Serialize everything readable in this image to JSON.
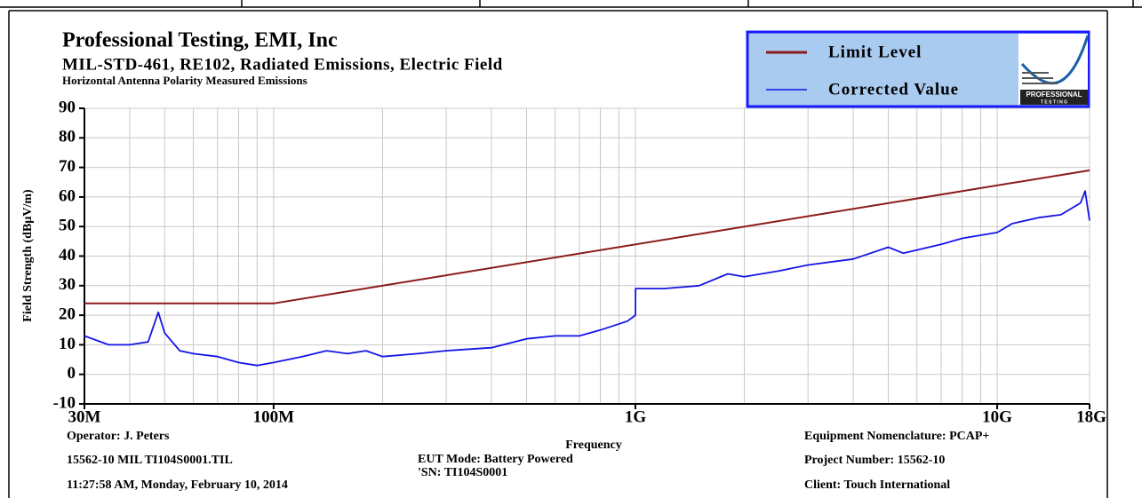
{
  "chart_data": {
    "type": "line",
    "title": "Professional Testing, EMI, Inc",
    "subtitle": "MIL-STD-461, RE102, Radiated Emissions, Electric Field",
    "caption": "Horizontal Antenna Polarity Measured Emissions",
    "y_label": "Field Strength (dBµV/m)",
    "x_label": "Frequency",
    "x_scale": "log",
    "grid": true,
    "legend": "top-right",
    "logo": {
      "line1": "PROFESSIONAL",
      "line2": "T E S T I N G"
    },
    "xlim": [
      30000000,
      18000000000
    ],
    "ylim": [
      -10,
      90
    ],
    "xticks": [
      {
        "value": 30000000,
        "label": "30M"
      },
      {
        "value": 100000000,
        "label": "100M"
      },
      {
        "value": 1000000000,
        "label": "1G"
      },
      {
        "value": 10000000000,
        "label": "10G"
      },
      {
        "value": 18000000000,
        "label": "18G"
      }
    ],
    "xminorticks": [
      40000000,
      50000000,
      60000000,
      70000000,
      80000000,
      90000000,
      200000000,
      300000000,
      400000000,
      500000000,
      600000000,
      700000000,
      800000000,
      900000000,
      2000000000,
      3000000000,
      4000000000,
      5000000000,
      6000000000,
      7000000000,
      8000000000,
      9000000000
    ],
    "yticks": [
      -10,
      0,
      10,
      20,
      30,
      40,
      50,
      60,
      70,
      80,
      90
    ],
    "series": [
      {
        "name": "Limit Level",
        "color": "#8b1a1a",
        "x": [
          30000000,
          100000000,
          18000000000
        ],
        "values": [
          24,
          24,
          69
        ]
      },
      {
        "name": "Corrected Value",
        "color": "#1414e6",
        "x": [
          30000000,
          35000000,
          40000000,
          45000000,
          48000000,
          50000000,
          55000000,
          60000000,
          70000000,
          80000000,
          90000000,
          100000000,
          120000000,
          140000000,
          160000000,
          180000000,
          200000000,
          250000000,
          300000000,
          400000000,
          500000000,
          600000000,
          700000000,
          800000000,
          950000000,
          1000000000,
          1001000000,
          1200000000,
          1500000000,
          1800000000,
          2000000000,
          2500000000,
          3000000000,
          4000000000,
          5000000000,
          5500000000,
          7000000000,
          8000000000,
          10000000000,
          11000000000,
          13000000000,
          15000000000,
          17000000000,
          17500000000,
          18000000000
        ],
        "values": [
          13,
          10,
          10,
          11,
          21,
          14,
          8,
          7,
          6,
          4,
          3,
          4,
          6,
          8,
          7,
          8,
          6,
          7,
          8,
          9,
          12,
          13,
          13,
          15,
          18,
          20,
          29,
          29,
          30,
          34,
          33,
          35,
          37,
          39,
          43,
          41,
          44,
          46,
          48,
          51,
          53,
          54,
          58,
          62,
          52
        ]
      }
    ],
    "footer": {
      "operator": "Operator: J. Peters",
      "file": "15562-10 MIL TI104S0001.TIL",
      "date": "11:27:58 AM, Monday, February 10, 2014",
      "eut_mode": "EUT Mode: Battery Powered",
      "serial": "'SN: TI104S0001",
      "equipment": "Equipment Nomenclature: PCAP+",
      "project": "Project Number: 15562-10",
      "client": "Client: Touch International"
    }
  }
}
